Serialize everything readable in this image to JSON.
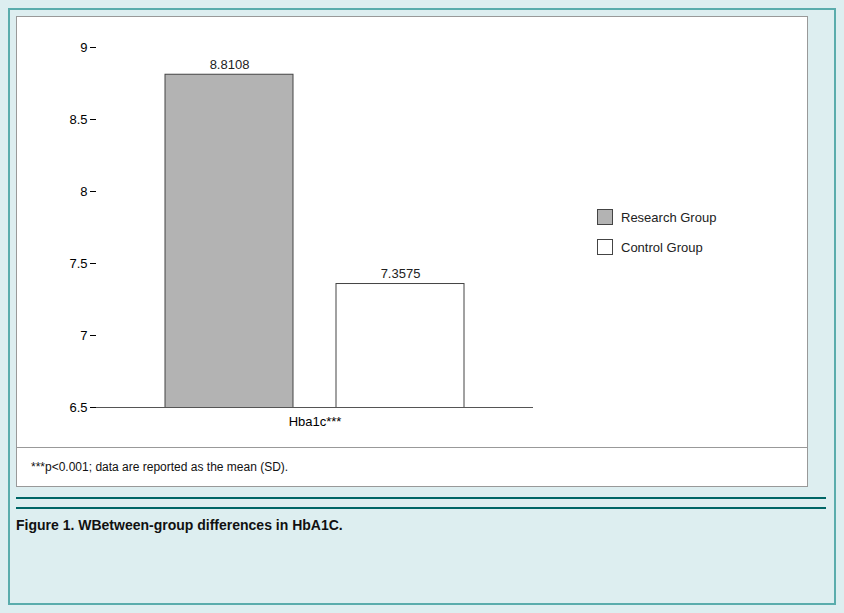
{
  "chart_data": {
    "type": "bar",
    "title": "Figure 1. WBetween-group differences in HbA1C.",
    "annotations": [
      "***p<0.001; data are reported as the mean (SD)."
    ],
    "categories": [
      "Hba1c***"
    ],
    "series": [
      {
        "name": "Research Group",
        "color": "#b3b3b3",
        "values": [
          8.8108
        ]
      },
      {
        "name": "Control Group",
        "color": "#ffffff",
        "values": [
          7.3575
        ]
      }
    ],
    "ylim": [
      6.5,
      9.0
    ],
    "yticks": [
      6.5,
      7,
      7.5,
      8,
      8.5,
      9
    ],
    "data_labels": true,
    "legend": "right",
    "grid": false
  }
}
